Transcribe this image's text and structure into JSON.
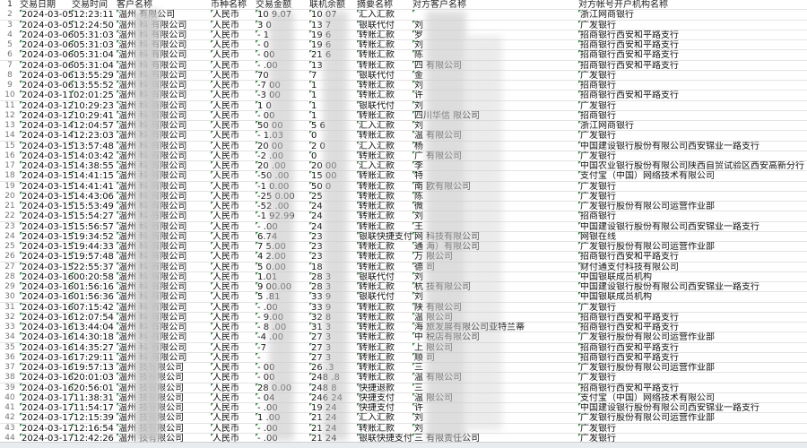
{
  "headers": [
    "交易日期",
    "交易时间",
    "客户名称",
    "币种名称",
    "交易金额",
    "联机余额",
    "摘要名称",
    "对方客户名称",
    "对方帐号开户机构名称"
  ],
  "currency": "人民币",
  "rows": [
    {
      "n": "2",
      "date": "2024-03-05",
      "time": "12:23:11",
      "cust": "温州 有限公司",
      "amt": "10  9.07",
      "bal": "10   07",
      "sum": "汇入汇款",
      "cp": "",
      "bank": "浙江网商银行"
    },
    {
      "n": "3",
      "date": "2024-03-05",
      "time": "12:24:50",
      "cust": "温州  科  有限公司",
      "amt": "3   0",
      "bal": "13   7",
      "sum": "银联代付",
      "cp": "刘",
      "bank": "广发银行"
    },
    {
      "n": "4",
      "date": "2024-03-06",
      "time": "05:31:03",
      "cust": "温州  科  有限公司",
      "amt": "-   1",
      "bal": "19   6",
      "sum": "转账汇款",
      "cp": "罗",
      "bank": "招商银行西安和平路支行"
    },
    {
      "n": "5",
      "date": "2024-03-06",
      "time": "05:31:03",
      "cust": "温州  科  有限公司",
      "amt": "-   0",
      "bal": "19   6",
      "sum": "转账汇款",
      "cp": "刘",
      "bank": "招商银行西安和平路支行"
    },
    {
      "n": "6",
      "date": "2024-03-06",
      "time": "05:31:04",
      "cust": "温州  科  有限公司",
      "amt": "-   00",
      "bal": "21   6",
      "sum": "转账汇款",
      "cp": "陈",
      "bank": "招商银行西安和平路支行"
    },
    {
      "n": "7",
      "date": "2024-03-06",
      "time": "05:31:04",
      "cust": "温州  科  有限公司",
      "amt": "-   .00",
      "bal": "13",
      "sum": "转账汇款",
      "cp": "四        有限公司",
      "bank": "招商银行西安和平路支行"
    },
    {
      "n": "8",
      "date": "2024-03-06",
      "time": "13:55:29",
      "cust": "温州  科  有限公司",
      "amt": "70",
      "bal": "7",
      "sum": "银联代付",
      "cp": "金",
      "bank": "广发银行"
    },
    {
      "n": "9",
      "date": "2024-03-06",
      "time": "13:55:52",
      "cust": "温州  科  有限公司",
      "amt": "-7   00",
      "bal": "1",
      "sum": "转账汇款",
      "cp": "刘",
      "bank": "招商银行"
    },
    {
      "n": "10",
      "date": "2024-03-11",
      "time": "02:01:25",
      "cust": "温州  科  有限公司",
      "amt": "-3   00",
      "bal": "1",
      "sum": "转账汇款",
      "cp": "许",
      "bank": "招商银行西安和平路支行"
    },
    {
      "n": "11",
      "date": "2024-03-12",
      "time": "10:29:23",
      "cust": "温州  科  有限公司",
      "amt": "1   0",
      "bal": "1",
      "sum": "银联代付",
      "cp": "刘",
      "bank": "广发银行"
    },
    {
      "n": "12",
      "date": "2024-03-12",
      "time": "10:29:41",
      "cust": "温州  科  有限公司",
      "amt": "-   00",
      "bal": "1",
      "sum": "转账汇款",
      "cp": "四川华信      限公司",
      "bank": "招商银行"
    },
    {
      "n": "13",
      "date": "2024-03-14",
      "time": "12:04:57",
      "cust": "温州  科  有限公司",
      "amt": "50   00",
      "bal": "5   6",
      "sum": "汇入汇款",
      "cp": "刘",
      "bank": "浙江网商银行"
    },
    {
      "n": "14",
      "date": "2024-03-14",
      "time": "12:23:03",
      "cust": "温州  科  有限公司",
      "amt": "-   1.03",
      "bal": "0",
      "sum": "转账汇款",
      "cp": "温        有限公司",
      "bank": "广发银行"
    },
    {
      "n": "15",
      "date": "2024-03-15",
      "time": "13:57:48",
      "cust": "温州  科  有限公司",
      "amt": "20   00",
      "bal": "2   0",
      "sum": "汇入汇款",
      "cp": "杨",
      "bank": "中国建设银行股份有限公司西安锦业一路支行"
    },
    {
      "n": "16",
      "date": "2024-03-15",
      "time": "14:03:42",
      "cust": "温州  科  有限公司",
      "amt": "-2   .00",
      "bal": "0",
      "sum": "转账汇款",
      "cp": "广       有限公司",
      "bank": "广发银行"
    },
    {
      "n": "17",
      "date": "2024-03-15",
      "time": "14:38:55",
      "cust": "温州  科  有限公司",
      "amt": "20   .00",
      "bal": "20   00",
      "sum": "汇入汇款",
      "cp": "李",
      "bank": "中国农业银行股份有限公司陕西自贸试验区西安高新分行"
    },
    {
      "n": "18",
      "date": "2024-03-15",
      "time": "14:41:15",
      "cust": "温州  科  有限公司",
      "amt": "-50   .00",
      "bal": "15   00",
      "sum": "转账汇款",
      "cp": "特",
      "bank": "支付宝（中国）网络技术有限公司"
    },
    {
      "n": "19",
      "date": "2024-03-15",
      "time": "14:41:41",
      "cust": "温州  科  有限公司",
      "amt": "-1  0.00",
      "bal": "50   0",
      "sum": "转账汇款",
      "cp": "南      欧有限公司",
      "bank": "广发银行"
    },
    {
      "n": "20",
      "date": "2024-03-15",
      "time": "14:43:06",
      "cust": "温州  科  有限公司",
      "amt": "-25  0.00",
      "bal": "25",
      "sum": "转账汇款",
      "cp": "陈",
      "bank": "广发银行"
    },
    {
      "n": "21",
      "date": "2024-03-15",
      "time": "15:53:49",
      "cust": "温州  科  有限公司",
      "amt": "-52  .00",
      "bal": "24",
      "sum": "转账汇款",
      "cp": "微",
      "bank": "广发银行股份有限公司运营作业部"
    },
    {
      "n": "22",
      "date": "2024-03-15",
      "time": "15:54:27",
      "cust": "温州  科  有限公司",
      "amt": "-1  92.99",
      "bal": "24",
      "sum": "转账汇款",
      "cp": "刘",
      "bank": "招商银行"
    },
    {
      "n": "23",
      "date": "2024-03-15",
      "time": "15:56:57",
      "cust": "温州  科  有限公司",
      "amt": "-  .00",
      "bal": "24",
      "sum": "转账汇款",
      "cp": "王",
      "bank": "中国建设银行股份有限公司西安锦业一路支行"
    },
    {
      "n": "24",
      "date": "2024-03-15",
      "time": "19:34:52",
      "cust": "温州  科  有限公司",
      "amt": "  6.74",
      "bal": "23",
      "sum": "银联快捷支付",
      "cp": "网        科技有限公司",
      "bank": "网银在线"
    },
    {
      "n": "25",
      "date": "2024-03-15",
      "time": "19:44:33",
      "cust": "温州  科  有限公司",
      "amt": "7  5.00",
      "bal": "23",
      "sum": "转账汇款",
      "cp": "通       海）有限公司",
      "bank": "广发银行股份有限公司运营作业部"
    },
    {
      "n": "26",
      "date": "2024-03-15",
      "time": "19:57:48",
      "cust": "温州  科  有限公司",
      "amt": "4  2.00",
      "bal": "23",
      "sum": "转账汇款",
      "cp": "万        限公司",
      "bank": "招商银行西安和平路支行"
    },
    {
      "n": "27",
      "date": "2024-03-15",
      "time": "22:55:37",
      "cust": "温州  科  有限公司",
      "amt": "5  0.00",
      "bal": "18",
      "sum": "转账汇款",
      "cp": "德        司",
      "bank": "财付通支付科技有限公司"
    },
    {
      "n": "28",
      "date": "2024-03-16",
      "time": "00:20:58",
      "cust": "温州  科  有限公司",
      "amt": "  1.01",
      "bal": "28   3",
      "sum": "银联代付",
      "cp": "刘",
      "bank": "中国银联成员机构"
    },
    {
      "n": "29",
      "date": "2024-03-16",
      "time": "01:56:16",
      "cust": "温州  科  有限公司",
      "amt": "  9  00.00",
      "bal": "28   3",
      "sum": "转账汇款",
      "cp": "杭       技有限公司",
      "bank": "中国建设银行股份有限公司西安锦业一路支行"
    },
    {
      "n": "30",
      "date": "2024-03-16",
      "time": "01:56:36",
      "cust": "温州  科  有限公司",
      "amt": "5   .81",
      "bal": "33   9",
      "sum": "银联代付",
      "cp": "刘",
      "bank": "中国银联成员机构"
    },
    {
      "n": "31",
      "date": "2024-03-16",
      "time": "07:15:42",
      "cust": "温州  科  有限公司",
      "amt": "-  .00",
      "bal": "33   9",
      "sum": "转账汇款",
      "cp": "陕       有限公司",
      "bank": "广发银行"
    },
    {
      "n": "32",
      "date": "2024-03-16",
      "time": "12:07:54",
      "cust": "温州  科  有限公司",
      "amt": "-  9.00",
      "bal": "32   8",
      "sum": "转账汇款",
      "cp": "温       限公司",
      "bank": "招商银行西安和平路支行"
    },
    {
      "n": "33",
      "date": "2024-03-16",
      "time": "13:44:04",
      "cust": "温州  科  有限公司",
      "amt": "-  8  .00",
      "bal": "31   3",
      "sum": "转账汇款",
      "cp": "海       旅发展有限公司亚特兰蒂",
      "bank": "招商银行西安和平路支行"
    },
    {
      "n": "34",
      "date": "2024-03-16",
      "time": "14:30:18",
      "cust": "温州  科  有限公司",
      "amt": "-4  .00",
      "bal": "27   3",
      "sum": "转账汇款",
      "cp": "中        税店有限公司",
      "bank": "广发银行股份有限公司运营作业部"
    },
    {
      "n": "35",
      "date": "2024-03-16",
      "time": "14:35:27",
      "cust": "温州  科  有限公司",
      "amt": "-7",
      "bal": "27   3",
      "sum": "转账汇款",
      "cp": "上       限公司",
      "bank": "招商银行西安和平路支行"
    },
    {
      "n": "36",
      "date": "2024-03-16",
      "time": "17:29:11",
      "cust": "温州  科  有限公司",
      "amt": "-",
      "bal": "27   3",
      "sum": "转账汇款",
      "cp": "顺       司",
      "bank": "招商银行西安和平路支行"
    },
    {
      "n": "37",
      "date": "2024-03-16",
      "time": "19:57:13",
      "cust": "温州  技有限公司",
      "amt": "-   00",
      "bal": "26  .3",
      "sum": "转账汇款",
      "cp": "三",
      "bank": "广发银行股份有限公司运营作业部"
    },
    {
      "n": "38",
      "date": "2024-03-16",
      "time": "20:01:03",
      "cust": "温州  技有限公司",
      "amt": "-   00",
      "bal": "248  .8",
      "sum": "转账汇款",
      "cp": "温       有限公司",
      "bank": "广发银行"
    },
    {
      "n": "39",
      "date": "2024-03-16",
      "time": "20:56:01",
      "cust": "温州  技有限公司",
      "amt": "28   0.00",
      "bal": "248  8",
      "sum": "快捷退款",
      "cp": "三",
      "bank": "招商银行西安和平路支行"
    },
    {
      "n": "40",
      "date": "2024-03-17",
      "time": "11:38:31",
      "cust": "温州  技有限公司",
      "amt": "-   04",
      "bal": "246  24",
      "sum": "快捷支付",
      "cp": "温       限公司",
      "bank": "支付宝（中国）网络技术有限公司"
    },
    {
      "n": "41",
      "date": "2024-03-17",
      "time": "11:54:17",
      "cust": "温州  技有限公司",
      "amt": "-   .00",
      "bal": "19   24",
      "sum": "快捷支付",
      "cp": "许",
      "bank": "中国建设银行股份有限公司西安锦业一路支行"
    },
    {
      "n": "42",
      "date": "2024-03-17",
      "time": "12:15:39",
      "cust": "温州  技有限公司",
      "amt": "1   .00",
      "bal": "21   24",
      "sum": "汇入汇款",
      "cp": "刘",
      "bank": "广发银行股份有限公司运营作业部"
    },
    {
      "n": "43",
      "date": "2024-03-17",
      "time": "12:16:54",
      "cust": "温州  技有限公司",
      "amt": "-   .00",
      "bal": "21   24",
      "sum": "转账汇款",
      "cp": "刘",
      "bank": "广发银行"
    },
    {
      "n": "44",
      "date": "2024-03-17",
      "time": "12:42:26",
      "cust": "温州  技有限公司",
      "amt": "-   .00",
      "bal": "21   24",
      "sum": "银联快捷支付",
      "cp": "三        有限责任公司",
      "bank": "广发银行"
    }
  ]
}
